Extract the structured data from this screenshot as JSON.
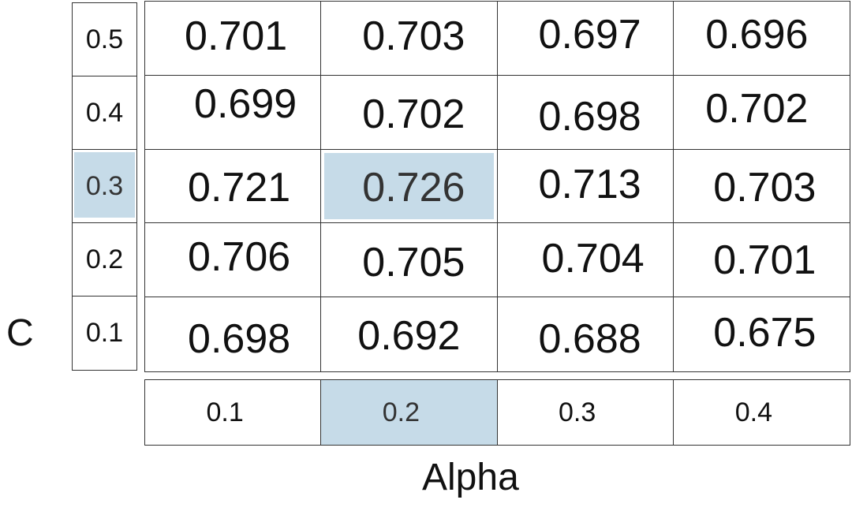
{
  "chart_data": {
    "type": "heatmap",
    "xlabel": "Alpha",
    "ylabel": "C",
    "x": [
      "0.1",
      "0.2",
      "0.3",
      "0.4"
    ],
    "y": [
      "0.5",
      "0.4",
      "0.3",
      "0.2",
      "0.1"
    ],
    "values": [
      [
        "0.701",
        "0.703",
        "0.697",
        "0.696"
      ],
      [
        "0.699",
        "0.702",
        "0.698",
        "0.702"
      ],
      [
        "0.721",
        "0.726",
        "0.713",
        "0.703"
      ],
      [
        "0.706",
        "0.705",
        "0.704",
        "0.701"
      ],
      [
        "0.698",
        "0.692",
        "0.688",
        "0.675"
      ]
    ],
    "highlight": {
      "x": "0.2",
      "y": "0.3",
      "value": "0.726"
    },
    "highlight_color": "#c6dbe8"
  }
}
